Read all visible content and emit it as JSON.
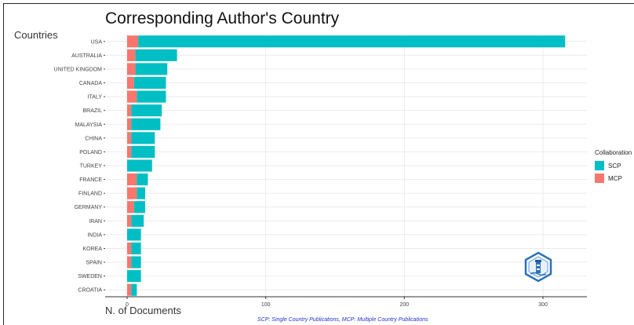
{
  "chart_data": {
    "type": "bar",
    "orientation": "horizontal",
    "stacked": true,
    "title": "Corresponding Author's Country",
    "ylabel": "Countries",
    "xlabel": "N. of Documents",
    "categories": [
      "USA",
      "AUSTRALIA",
      "UNITED KINGDOM",
      "CANADA",
      "ITALY",
      "BRAZIL",
      "MALAYSIA",
      "CHINA",
      "POLAND",
      "TURKEY",
      "FRANCE",
      "FINLAND",
      "GERMANY",
      "IRAN",
      "INDIA",
      "KOREA",
      "SPAIN",
      "SWEDEN",
      "CROATIA"
    ],
    "series": [
      {
        "name": "MCP",
        "color": "#f8766d",
        "values": [
          8,
          6,
          6,
          5,
          7,
          3,
          3,
          3,
          3,
          0,
          7,
          7,
          5,
          3,
          0,
          3,
          3,
          0,
          3
        ]
      },
      {
        "name": "SCP",
        "color": "#00bfc4",
        "values": [
          308,
          30,
          23,
          23,
          21,
          22,
          21,
          17,
          17,
          18,
          8,
          6,
          8,
          9,
          10,
          7,
          7,
          10,
          4
        ]
      }
    ],
    "xticks": [
      "0",
      "100",
      "200",
      "300"
    ],
    "xlim": [
      0,
      330
    ],
    "grid": true,
    "legend": {
      "title": "Collaboration",
      "position": "right",
      "items": [
        "SCP",
        "MCP"
      ]
    },
    "caption": "SCP: Single Country Publications, MCP: Multiple Country Publications"
  },
  "logo_icon": "hexagon-lighthouse-logo"
}
